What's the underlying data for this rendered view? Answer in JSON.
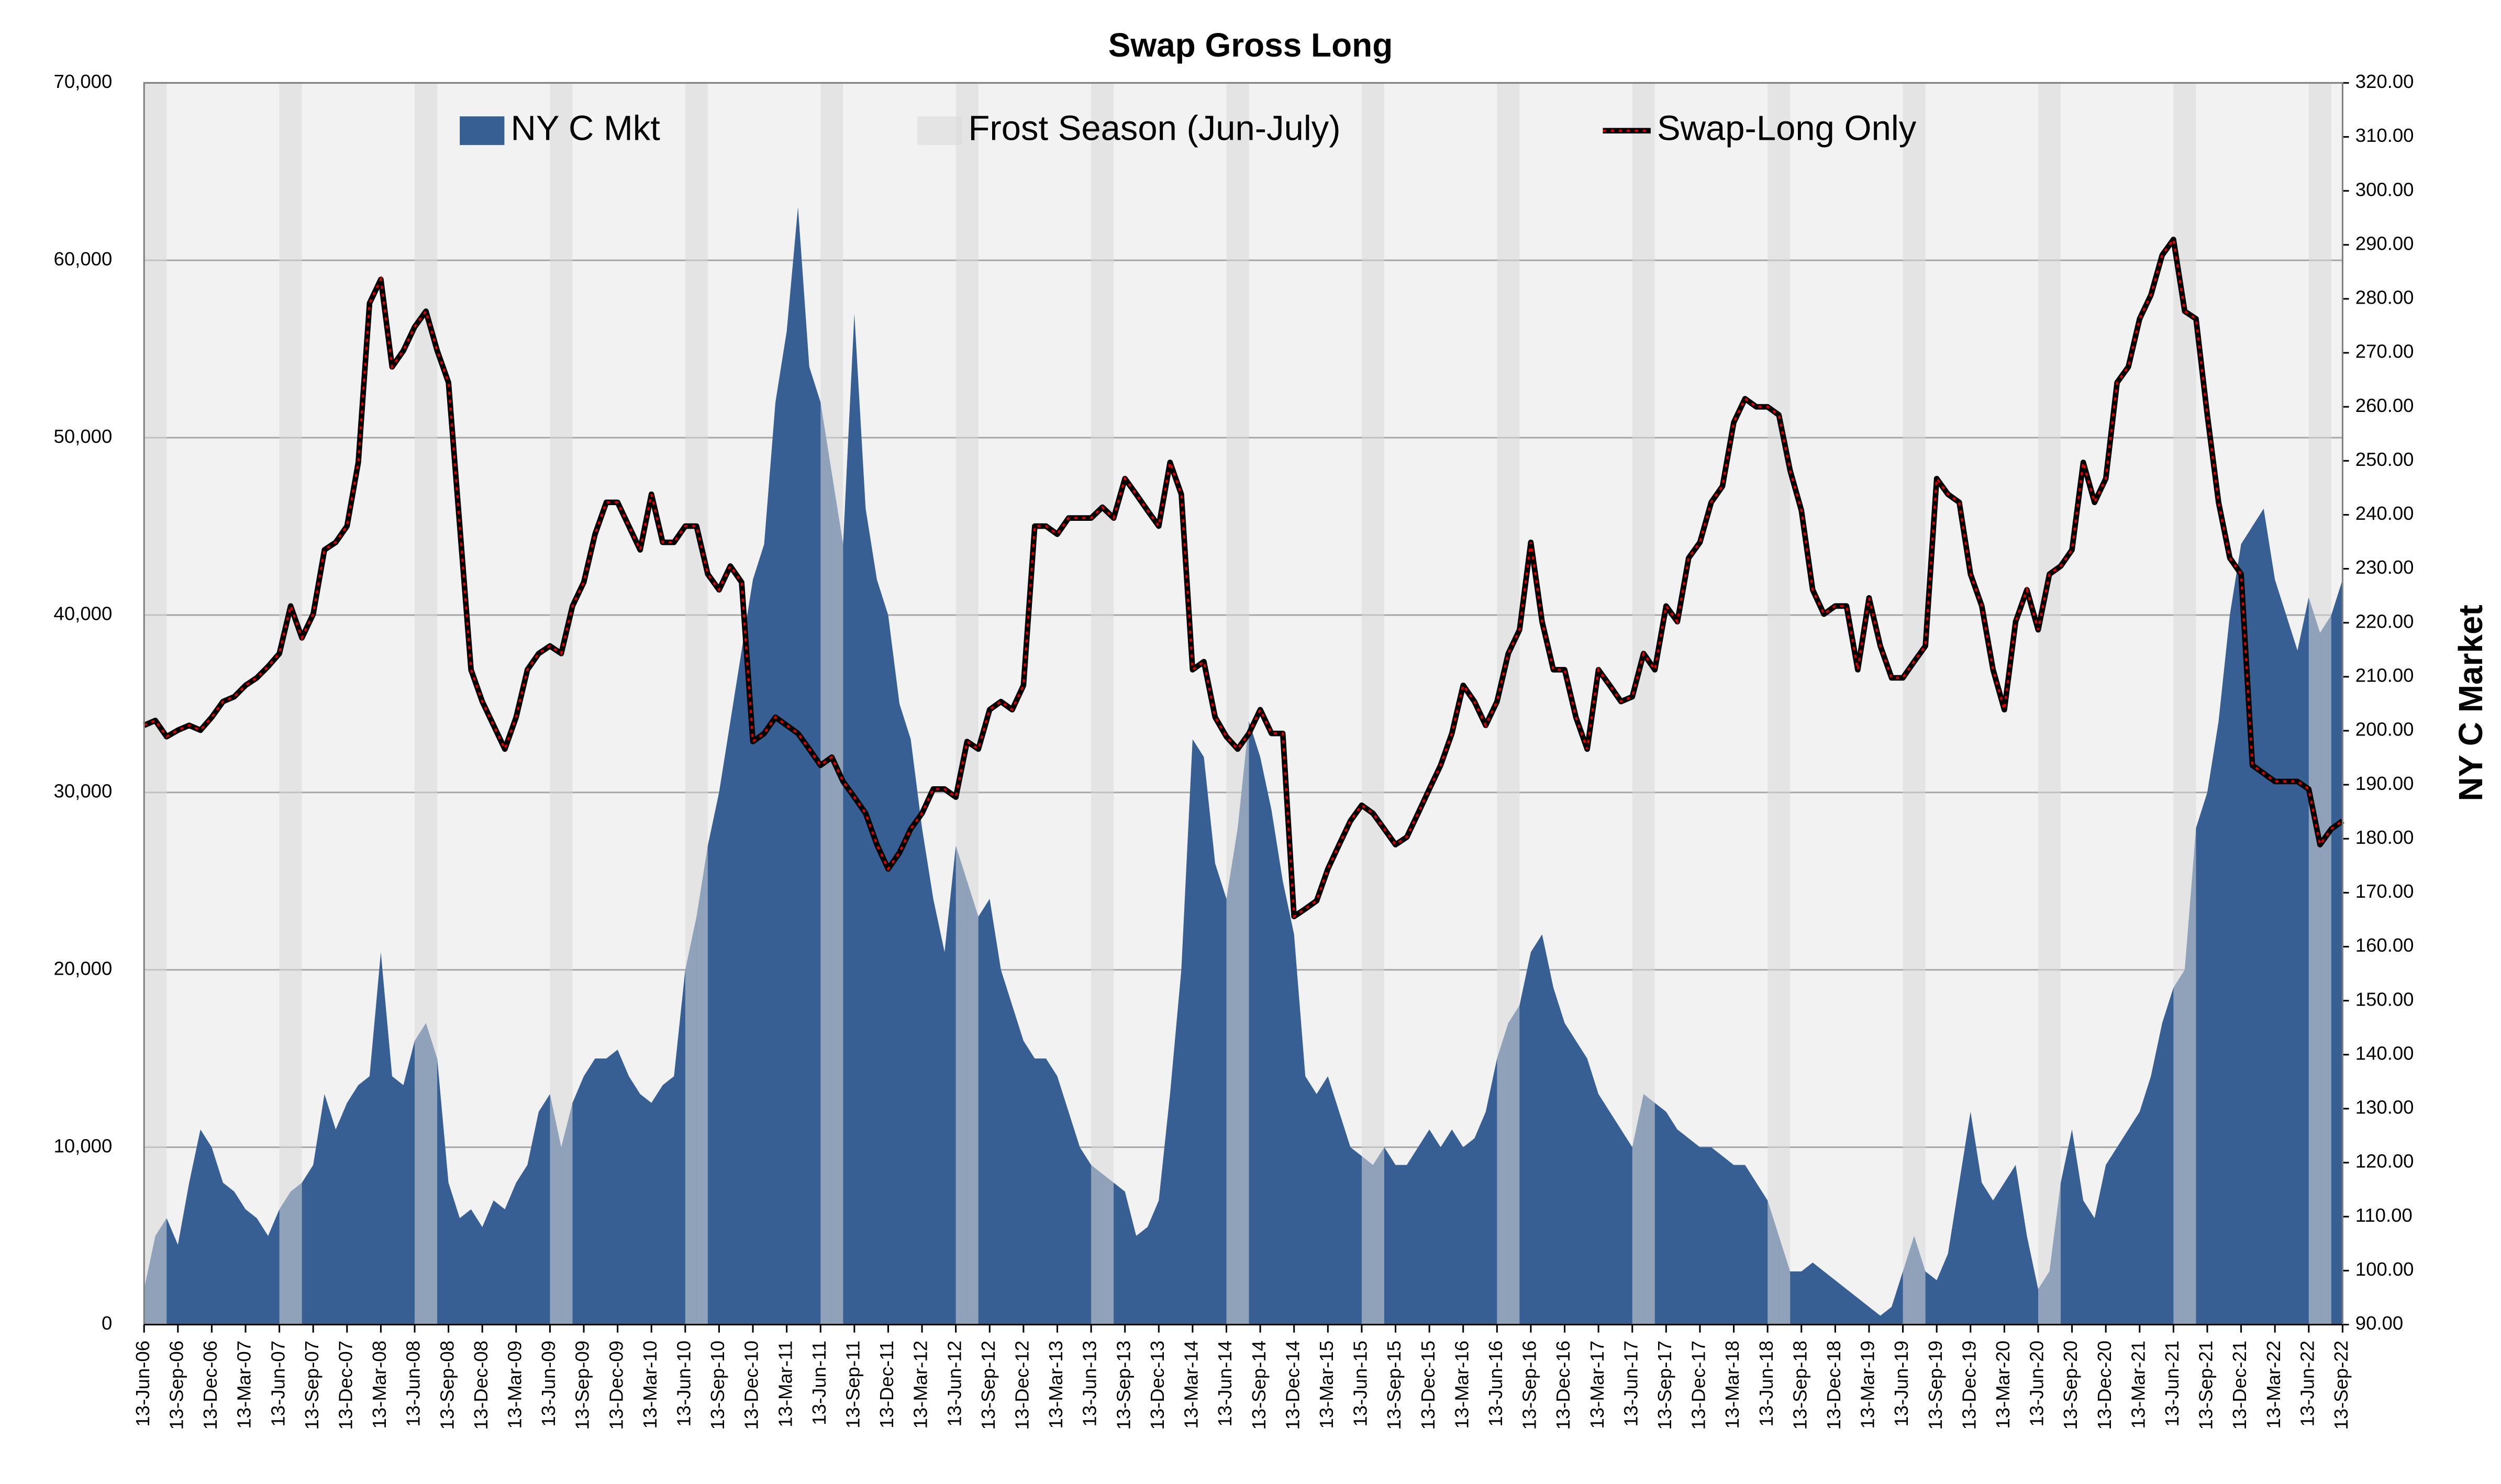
{
  "chart_data": {
    "type": "combo",
    "title": "Swap Gross Long",
    "y2label": "NY C Market",
    "legend": "top",
    "grid": true,
    "categories": [
      "13-Jun-06",
      null,
      null,
      "13-Sep-06",
      null,
      null,
      "13-Dec-06",
      null,
      null,
      "13-Mar-07",
      null,
      null,
      "13-Jun-07",
      null,
      null,
      "13-Sep-07",
      null,
      null,
      "13-Dec-07",
      null,
      null,
      "13-Mar-08",
      null,
      null,
      "13-Jun-08",
      null,
      null,
      "13-Sep-08",
      null,
      null,
      "13-Dec-08",
      null,
      null,
      "13-Mar-09",
      null,
      null,
      "13-Jun-09",
      null,
      null,
      "13-Sep-09",
      null,
      null,
      "13-Dec-09",
      null,
      null,
      "13-Mar-10",
      null,
      null,
      "13-Jun-10",
      null,
      null,
      "13-Sep-10",
      null,
      null,
      "13-Dec-10",
      null,
      null,
      "13-Mar-11",
      null,
      null,
      "13-Jun-11",
      null,
      null,
      "13-Sep-11",
      null,
      null,
      "13-Dec-11",
      null,
      null,
      "13-Mar-12",
      null,
      null,
      "13-Jun-12",
      null,
      null,
      "13-Sep-12",
      null,
      null,
      "13-Dec-12",
      null,
      null,
      "13-Mar-13",
      null,
      null,
      "13-Jun-13",
      null,
      null,
      "13-Sep-13",
      null,
      null,
      "13-Dec-13",
      null,
      null,
      "13-Mar-14",
      null,
      null,
      "13-Jun-14",
      null,
      null,
      "13-Sep-14",
      null,
      null,
      "13-Dec-14",
      null,
      null,
      "13-Mar-15",
      null,
      null,
      "13-Jun-15",
      null,
      null,
      "13-Sep-15",
      null,
      null,
      "13-Dec-15",
      null,
      null,
      "13-Mar-16",
      null,
      null,
      "13-Jun-16",
      null,
      null,
      "13-Sep-16",
      null,
      null,
      "13-Dec-16",
      null,
      null,
      "13-Mar-17",
      null,
      null,
      "13-Jun-17",
      null,
      null,
      "13-Sep-17",
      null,
      null,
      "13-Dec-17",
      null,
      null,
      "13-Mar-18",
      null,
      null,
      "13-Jun-18",
      null,
      null,
      "13-Sep-18",
      null,
      null,
      "13-Dec-18",
      null,
      null,
      "13-Mar-19",
      null,
      null,
      "13-Jun-19",
      null,
      null,
      "13-Sep-19",
      null,
      null,
      "13-Dec-19",
      null,
      null,
      "13-Mar-20",
      null,
      null,
      "13-Jun-20",
      null,
      null,
      "13-Sep-20",
      null,
      null,
      "13-Dec-20",
      null,
      null,
      "13-Mar-21",
      null,
      null,
      "13-Jun-21",
      null,
      null,
      "13-Sep-21",
      null,
      null,
      "13-Dec-21",
      null,
      null,
      "13-Mar-22",
      null,
      null,
      "13-Jun-22",
      null,
      null,
      "13-Sep-22"
    ],
    "ylim": [
      0,
      70000
    ],
    "yticks": [
      0,
      {
        "value": 10000,
        "label": "10,000"
      },
      {
        "value": 20000,
        "label": "20,000"
      },
      {
        "value": 30000,
        "label": "30,000"
      },
      {
        "value": 40000,
        "label": "40,000"
      },
      {
        "value": 50000,
        "label": "50,000"
      },
      {
        "value": 60000,
        "label": "60,000"
      },
      {
        "value": 70000,
        "label": "70,000"
      }
    ],
    "y2lim": [
      90,
      320
    ],
    "y2ticks": [
      {
        "value": 90,
        "label": "90.00"
      },
      {
        "value": 100,
        "label": "100.00"
      },
      {
        "value": 110,
        "label": "110.00"
      },
      {
        "value": 120,
        "label": "120.00"
      },
      {
        "value": 130,
        "label": "130.00"
      },
      {
        "value": 140,
        "label": "140.00"
      },
      {
        "value": 150,
        "label": "150.00"
      },
      {
        "value": 160,
        "label": "160.00"
      },
      {
        "value": 170,
        "label": "170.00"
      },
      {
        "value": 180,
        "label": "180.00"
      },
      {
        "value": 190,
        "label": "190.00"
      },
      {
        "value": 200,
        "label": "200.00"
      },
      {
        "value": 210,
        "label": "210.00"
      },
      {
        "value": 220,
        "label": "220.00"
      },
      {
        "value": 230,
        "label": "230.00"
      },
      {
        "value": 240,
        "label": "240.00"
      },
      {
        "value": 250,
        "label": "250.00"
      },
      {
        "value": 260,
        "label": "260.00"
      },
      {
        "value": 270,
        "label": "270.00"
      },
      {
        "value": 280,
        "label": "280.00"
      },
      {
        "value": 290,
        "label": "290.00"
      },
      {
        "value": 300,
        "label": "300.00"
      },
      {
        "value": 310,
        "label": "310.00"
      },
      {
        "value": 320,
        "label": "320.00"
      }
    ],
    "series": [
      {
        "name": "NY C Mkt",
        "type": "area",
        "color": "#375f93",
        "values": [
          2000,
          5000,
          6000,
          4500,
          8000,
          11000,
          10000,
          8000,
          7500,
          6500,
          6000,
          5000,
          6500,
          7500,
          8000,
          9000,
          13000,
          11000,
          12500,
          13500,
          14000,
          21000,
          14000,
          13500,
          16000,
          17000,
          15000,
          8000,
          6000,
          6500,
          5500,
          7000,
          6500,
          8000,
          9000,
          12000,
          13000,
          10000,
          12500,
          14000,
          15000,
          15000,
          15500,
          14000,
          13000,
          12500,
          13500,
          14000,
          20000,
          23000,
          27000,
          30000,
          34000,
          38000,
          42000,
          44000,
          52000,
          56000,
          63000,
          54000,
          52000,
          48000,
          44000,
          57000,
          46000,
          42000,
          40000,
          35000,
          33000,
          28000,
          24000,
          21000,
          27000,
          25000,
          23000,
          24000,
          20000,
          18000,
          16000,
          15000,
          15000,
          14000,
          12000,
          10000,
          9000,
          8500,
          8000,
          7500,
          5000,
          5500,
          7000,
          13000,
          20000,
          33000,
          32000,
          26000,
          24000,
          28000,
          34000,
          32000,
          29000,
          25000,
          22000,
          14000,
          13000,
          14000,
          12000,
          10000,
          9500,
          9000,
          10000,
          9000,
          9000,
          10000,
          11000,
          10000,
          11000,
          10000,
          10500,
          12000,
          15000,
          17000,
          18000,
          21000,
          22000,
          19000,
          17000,
          16000,
          15000,
          13000,
          12000,
          11000,
          10000,
          13000,
          12500,
          12000,
          11000,
          10500,
          10000,
          10000,
          9500,
          9000,
          9000,
          8000,
          7000,
          5000,
          3000,
          3000,
          3500,
          3000,
          2500,
          2000,
          1500,
          1000,
          500,
          1000,
          3000,
          5000,
          3000,
          2500,
          4000,
          8000,
          12000,
          8000,
          7000,
          8000,
          9000,
          5000,
          2000,
          3000,
          8000,
          11000,
          7000,
          6000,
          9000,
          10000,
          11000,
          12000,
          14000,
          17000,
          19000,
          20000,
          28000,
          30000,
          34000,
          40000,
          44000,
          45000,
          46000,
          42000,
          40000,
          38000,
          41000,
          39000,
          40000,
          42000
        ]
      },
      {
        "name": "Frost Season (Jun-July)",
        "type": "bar",
        "color": "#d9d9d9",
        "values": [
          70000,
          70000,
          null,
          null,
          null,
          null,
          null,
          null,
          null,
          null,
          null,
          null,
          70000,
          70000,
          null,
          null,
          null,
          null,
          null,
          null,
          null,
          null,
          null,
          null,
          70000,
          70000,
          null,
          null,
          null,
          null,
          null,
          null,
          null,
          null,
          null,
          null,
          70000,
          70000,
          null,
          null,
          null,
          null,
          null,
          null,
          null,
          null,
          null,
          null,
          70000,
          70000,
          null,
          null,
          null,
          null,
          null,
          null,
          null,
          null,
          null,
          null,
          70000,
          70000,
          null,
          null,
          null,
          null,
          null,
          null,
          null,
          null,
          null,
          null,
          70000,
          70000,
          null,
          null,
          null,
          null,
          null,
          null,
          null,
          null,
          null,
          null,
          70000,
          70000,
          null,
          null,
          null,
          null,
          null,
          null,
          null,
          null,
          null,
          null,
          70000,
          70000,
          null,
          null,
          null,
          null,
          null,
          null,
          null,
          null,
          null,
          null,
          70000,
          70000,
          null,
          null,
          null,
          null,
          null,
          null,
          null,
          null,
          null,
          null,
          70000,
          70000,
          null,
          null,
          null,
          null,
          null,
          null,
          null,
          null,
          null,
          null,
          70000,
          70000,
          null,
          null,
          null,
          null,
          null,
          null,
          null,
          null,
          null,
          null,
          70000,
          70000,
          null,
          null,
          null,
          null,
          null,
          null,
          null,
          null,
          null,
          null,
          70000,
          70000,
          null,
          null,
          null,
          null,
          null,
          null,
          null,
          null,
          null,
          null,
          70000,
          70000,
          null,
          null,
          null,
          null,
          null,
          null,
          null,
          null,
          null,
          null,
          70000,
          70000,
          null,
          null,
          null,
          null,
          null,
          null,
          null,
          null,
          null,
          null,
          70000,
          70000,
          null,
          null
        ]
      },
      {
        "name": "Swap-Long Only",
        "type": "line",
        "axis": "y2",
        "color": "#000000",
        "values": [
          201.0,
          201.9,
          198.9,
          200.1,
          201.0,
          200.1,
          202.5,
          205.4,
          206.3,
          208.4,
          209.8,
          211.9,
          214.3,
          223.1,
          217.2,
          221.6,
          233.5,
          234.9,
          237.9,
          249.7,
          279.2,
          283.6,
          267.4,
          270.4,
          274.8,
          277.7,
          270.4,
          264.5,
          237.9,
          211.3,
          205.4,
          201.0,
          196.6,
          202.5,
          211.3,
          214.3,
          215.7,
          214.3,
          223.1,
          227.5,
          236.4,
          242.3,
          242.3,
          237.9,
          233.5,
          243.8,
          234.9,
          234.9,
          237.9,
          237.9,
          229.0,
          226.1,
          230.5,
          227.5,
          198.0,
          199.5,
          202.5,
          201.0,
          199.5,
          196.6,
          193.6,
          195.1,
          190.6,
          187.7,
          184.7,
          178.9,
          174.4,
          177.4,
          181.8,
          184.7,
          189.2,
          189.2,
          187.7,
          198.0,
          196.6,
          203.9,
          205.4,
          203.9,
          208.4,
          237.9,
          237.9,
          236.4,
          239.4,
          239.4,
          239.4,
          241.4,
          239.4,
          246.7,
          243.8,
          240.8,
          237.9,
          249.7,
          243.8,
          211.3,
          212.8,
          202.5,
          198.9,
          196.6,
          199.5,
          203.9,
          199.5,
          199.5,
          165.6,
          167.0,
          168.5,
          174.4,
          178.9,
          183.3,
          186.2,
          184.7,
          181.8,
          178.9,
          180.3,
          184.7,
          189.2,
          193.6,
          199.5,
          208.4,
          205.4,
          201.0,
          205.4,
          214.3,
          218.7,
          234.9,
          220.2,
          211.3,
          211.3,
          202.5,
          196.6,
          211.3,
          208.4,
          205.4,
          206.3,
          214.3,
          211.3,
          223.1,
          220.2,
          232.0,
          234.9,
          242.3,
          245.3,
          257.1,
          261.5,
          260.0,
          260.0,
          258.5,
          248.2,
          240.8,
          226.1,
          221.6,
          223.1,
          223.1,
          211.3,
          224.6,
          215.7,
          209.8,
          209.8,
          212.8,
          215.7,
          246.7,
          243.8,
          242.3,
          229.0,
          223.1,
          211.3,
          203.9,
          220.2,
          226.1,
          218.7,
          229.0,
          230.5,
          233.5,
          249.7,
          242.3,
          246.7,
          264.5,
          267.4,
          276.3,
          280.7,
          288.1,
          291.0,
          277.7,
          276.3,
          258.5,
          242.3,
          232.0,
          229.0,
          193.6,
          192.1,
          190.6,
          190.6,
          190.6,
          189.2,
          178.9,
          181.8,
          183.3
        ]
      }
    ]
  }
}
